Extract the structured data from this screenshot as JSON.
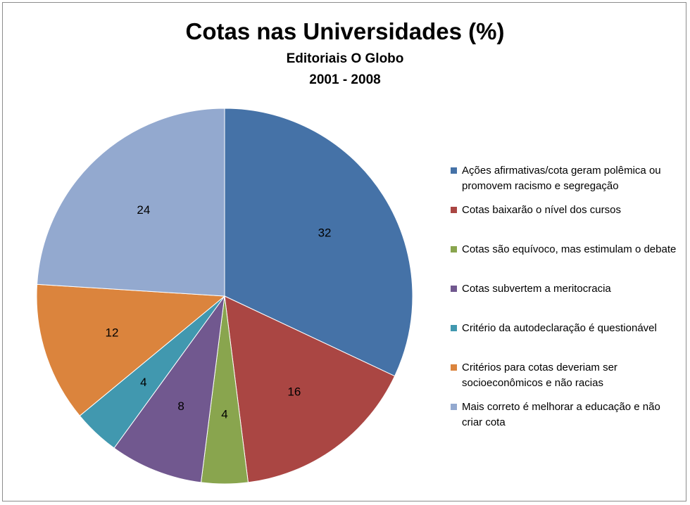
{
  "chart_data": {
    "type": "pie",
    "title": "Cotas nas Universidades (%)",
    "subtitle_lines": [
      "Editoriais O Globo",
      "2001 - 2008"
    ],
    "legend_position": "right",
    "slices": [
      {
        "label": "Ações afirmativas/cota geram polêmica ou promovem racismo e segregação",
        "value": 32,
        "data_label": "32",
        "color": "#4572a7"
      },
      {
        "label": "Cotas baixarão o nível dos cursos",
        "value": 16,
        "data_label": "16",
        "color": "#aa4643"
      },
      {
        "label": "Cotas são equívoco, mas estimulam o debate",
        "value": 4,
        "data_label": "4",
        "color": "#89a54e"
      },
      {
        "label": "Cotas subvertem a meritocracia",
        "value": 8,
        "data_label": "8",
        "color": "#71588f"
      },
      {
        "label": "Critério da autodeclaração é questionável",
        "value": 4,
        "data_label": "4",
        "color": "#4198af"
      },
      {
        "label": "Critérios para cotas deveriam ser socioeconômicos e não racias",
        "value": 12,
        "data_label": "12",
        "color": "#db843d"
      },
      {
        "label": "Mais correto é melhorar a educação e não criar cota",
        "value": 24,
        "data_label": "24",
        "color": "#93a9cf"
      }
    ]
  }
}
